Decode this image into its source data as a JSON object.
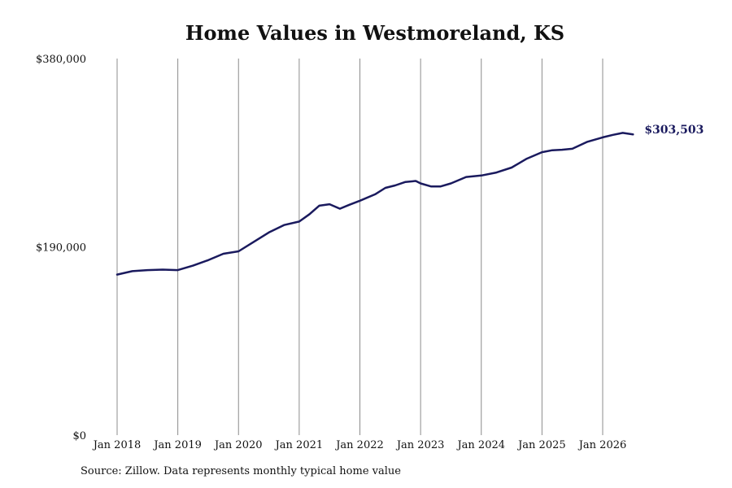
{
  "chart_data": {
    "type": "line",
    "title": "Home Values in Westmoreland, KS",
    "source": "Source: Zillow. Data represents monthly typical home value",
    "ylim": [
      0,
      380000
    ],
    "y_ticks": [
      {
        "value": 0,
        "label": "$0"
      },
      {
        "value": 190000,
        "label": "$190,000"
      },
      {
        "value": 380000,
        "label": "$380,000"
      }
    ],
    "x_ticks": [
      {
        "value": 2018,
        "label": "Jan 2018"
      },
      {
        "value": 2019,
        "label": "Jan 2019"
      },
      {
        "value": 2020,
        "label": "Jan 2020"
      },
      {
        "value": 2021,
        "label": "Jan 2021"
      },
      {
        "value": 2022,
        "label": "Jan 2022"
      },
      {
        "value": 2023,
        "label": "Jan 2023"
      },
      {
        "value": 2024,
        "label": "Jan 2024"
      },
      {
        "value": 2025,
        "label": "Jan 2025"
      },
      {
        "value": 2026,
        "label": "Jan 2026"
      }
    ],
    "xlim": [
      2018,
      2026.5
    ],
    "grid": {
      "vertical": true,
      "horizontal": false
    },
    "end_label": "$303,503",
    "series": [
      {
        "color": "#1a1a5e",
        "x": [
          2018.0,
          2018.25,
          2018.5,
          2018.75,
          2019.0,
          2019.25,
          2019.5,
          2019.75,
          2020.0,
          2020.25,
          2020.5,
          2020.75,
          2021.0,
          2021.17,
          2021.33,
          2021.5,
          2021.67,
          2021.83,
          2022.0,
          2022.25,
          2022.42,
          2022.58,
          2022.75,
          2022.92,
          2023.0,
          2023.17,
          2023.33,
          2023.5,
          2023.75,
          2024.0,
          2024.25,
          2024.5,
          2024.75,
          2025.0,
          2025.17,
          2025.33,
          2025.5,
          2025.75,
          2026.0,
          2026.17,
          2026.33,
          2026.5
        ],
        "values": [
          162000,
          165500,
          166500,
          167000,
          166500,
          171000,
          176500,
          183000,
          185500,
          195000,
          204500,
          212000,
          215500,
          223000,
          231500,
          233000,
          228500,
          232500,
          236500,
          243000,
          249500,
          252000,
          255500,
          256500,
          254000,
          251000,
          251000,
          254000,
          260500,
          262000,
          265000,
          270000,
          279000,
          285500,
          287500,
          288000,
          289000,
          296000,
          300500,
          303000,
          305000,
          303503
        ]
      }
    ]
  }
}
